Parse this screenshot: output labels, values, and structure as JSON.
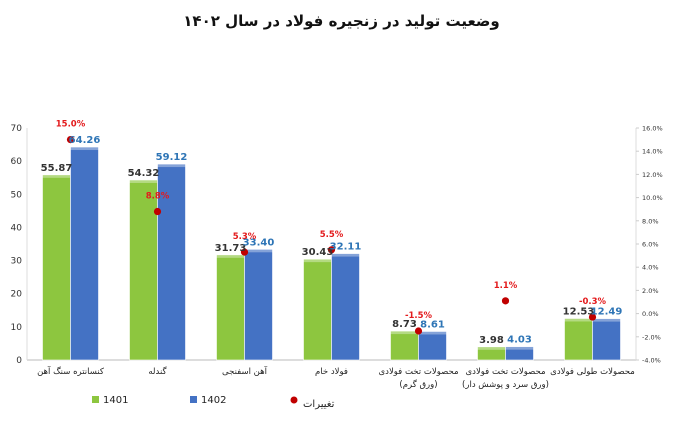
{
  "page_title": "وضعیت تولید در زنجیره فولاد در سال ۱۴۰۲",
  "chart_data": {
    "type": "bar",
    "categories": [
      "کنسانتره سنگ آهن",
      "گندله",
      "آهن اسفنجی",
      "فولاد خام",
      [
        "محصولات تخت فولادی",
        "(ورق گرم)"
      ],
      [
        "محصولات تخت فولادی",
        "(ورق سرد و پوشش دار)"
      ],
      "محصولات طولی فولادی"
    ],
    "series": [
      {
        "name": "1401",
        "color": "#8DC63F",
        "values": [
          55.87,
          54.32,
          31.73,
          30.43,
          8.73,
          3.98,
          12.53
        ],
        "labels": [
          "55.87",
          "54.32",
          "31.73",
          "30.43",
          "8.73",
          "3.98",
          "12.53"
        ]
      },
      {
        "name": "1402",
        "color": "#4472C4",
        "values": [
          64.26,
          59.12,
          33.4,
          32.11,
          8.61,
          4.03,
          12.49
        ],
        "labels": [
          "64.26",
          "59.12",
          "33.40",
          "32.11",
          "8.61",
          "4.03",
          "12.49"
        ]
      }
    ],
    "change_series": {
      "name": "تغییرات",
      "color": "#C00000",
      "values": [
        15.0,
        8.8,
        5.3,
        5.5,
        -1.5,
        1.1,
        -0.3
      ],
      "labels": [
        "15.0%",
        "8.8%",
        "5.3%",
        "5.5%",
        "-1.5%",
        "1.1%",
        "-0.3%"
      ]
    },
    "ylim": [
      0,
      70
    ],
    "yticks": [
      "0",
      "10",
      "20",
      "30",
      "40",
      "50",
      "60",
      "70"
    ],
    "y2lim": [
      -4,
      16
    ],
    "y2ticks": [
      "-4.0%",
      "-2.0%",
      "0.0%",
      "2.0%",
      "4.0%",
      "6.0%",
      "8.0%",
      "10.0%",
      "12.0%",
      "14.0%",
      "16.0%"
    ],
    "legend_position": "bottom",
    "grid": false
  }
}
